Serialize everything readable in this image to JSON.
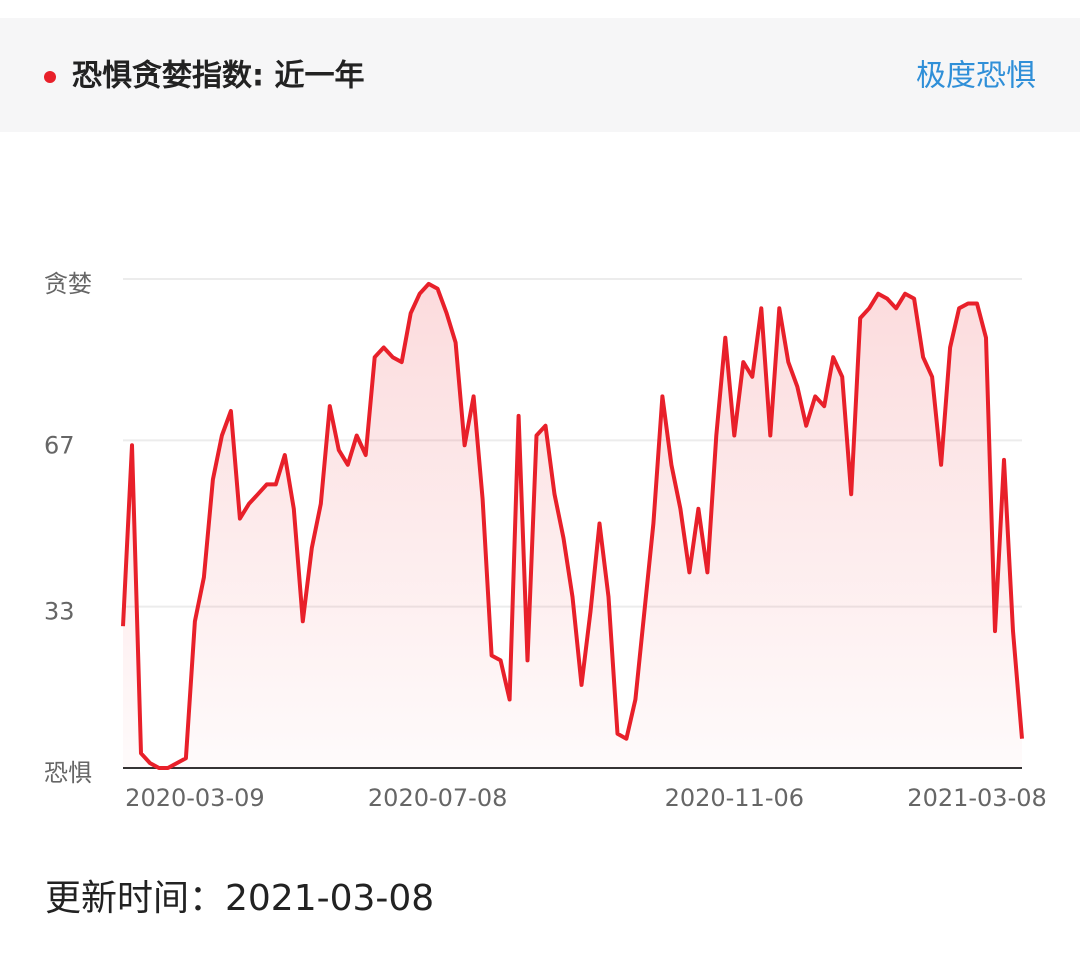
{
  "header": {
    "title": "恐惧贪婪指数: 近一年",
    "status": "极度恐惧"
  },
  "update_time": "更新时间：2021-03-08",
  "chart_data": {
    "type": "line",
    "color": "#e8202a",
    "grid": true,
    "xlim": [
      0,
      100
    ],
    "xticks": [
      {
        "value": 8,
        "label": "2020-03-09"
      },
      {
        "value": 35,
        "label": "2020-07-08"
      },
      {
        "value": 68,
        "label": "2020-11-06"
      },
      {
        "value": 95,
        "label": "2021-03-08"
      }
    ],
    "ylim": [
      0,
      100
    ],
    "yticks": [
      {
        "value": 0,
        "label": "恐惧"
      },
      33,
      67,
      {
        "value": 100,
        "label": "贪婪"
      }
    ],
    "values": [
      29,
      66,
      3,
      1,
      0,
      0,
      1,
      2,
      30,
      39,
      59,
      68,
      73,
      51,
      54,
      56,
      58,
      58,
      64,
      53,
      30,
      45,
      54,
      74,
      65,
      62,
      68,
      64,
      84,
      86,
      84,
      83,
      93,
      97,
      99,
      98,
      93,
      87,
      66,
      76,
      55,
      23,
      22,
      14,
      72,
      22,
      68,
      70,
      56,
      47,
      35,
      17,
      32,
      50,
      35,
      7,
      6,
      14,
      32,
      50,
      76,
      62,
      53,
      40,
      53,
      40,
      68,
      88,
      68,
      83,
      80,
      94,
      68,
      94,
      83,
      78,
      70,
      76,
      74,
      84,
      80,
      56,
      92,
      94,
      97,
      96,
      94,
      97,
      96,
      84,
      80,
      62,
      86,
      94,
      95,
      95,
      88,
      28,
      63,
      28,
      6
    ]
  }
}
